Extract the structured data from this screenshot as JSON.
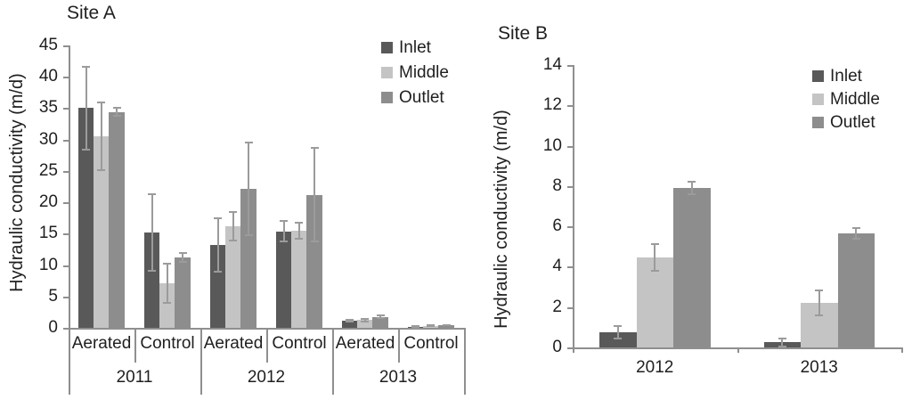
{
  "page": {
    "background": "#ffffff"
  },
  "style": {
    "axis_color": "#8f8f8f",
    "error_bar_color": "#9b9b9b",
    "text_color": "#1f1f1f",
    "series_colors": {
      "inlet": "#595959",
      "middle": "#c4c4c4",
      "outlet": "#8d8d8d"
    }
  },
  "chart_data": [
    {
      "id": "site-a",
      "type": "bar",
      "title": "Site A",
      "xlabel": "",
      "ylabel": "Hydraulic conductivity (m/d)",
      "ylim": [
        0,
        45
      ],
      "ytick_step": 5,
      "grid": false,
      "error_bars": true,
      "legend_position": "top-right-inside",
      "legend": [
        "Inlet",
        "Middle",
        "Outlet"
      ],
      "axis_groups": [
        {
          "label": "2011",
          "subs": [
            "Aerated",
            "Control"
          ]
        },
        {
          "label": "2012",
          "subs": [
            "Aerated",
            "Control"
          ]
        },
        {
          "label": "2013",
          "subs": [
            "Aerated",
            "Control"
          ]
        }
      ],
      "series": [
        {
          "name": "Inlet",
          "color": "#595959",
          "values": [
            35.0,
            15.2,
            13.2,
            15.4,
            1.1,
            0.15
          ],
          "errors": [
            6.8,
            6.3,
            4.4,
            1.8,
            0.3,
            0.05
          ]
        },
        {
          "name": "Middle",
          "color": "#c4c4c4",
          "values": [
            30.5,
            7.1,
            16.2,
            15.5,
            1.25,
            0.35
          ],
          "errors": [
            5.5,
            3.3,
            2.4,
            1.4,
            0.35,
            0.1
          ]
        },
        {
          "name": "Outlet",
          "color": "#8d8d8d",
          "values": [
            34.4,
            11.2,
            22.1,
            21.2,
            1.75,
            0.4
          ],
          "errors": [
            0.8,
            0.9,
            7.5,
            7.6,
            0.4,
            0.1
          ]
        }
      ]
    },
    {
      "id": "site-b",
      "type": "bar",
      "title": "Site B",
      "xlabel": "",
      "ylabel": "Hydraulic conductivity (m/d)",
      "ylim": [
        0,
        14
      ],
      "ytick_step": 2,
      "grid": false,
      "error_bars": true,
      "legend_position": "top-right-inside",
      "legend": [
        "Inlet",
        "Middle",
        "Outlet"
      ],
      "categories": [
        "2012",
        "2013"
      ],
      "series": [
        {
          "name": "Inlet",
          "color": "#595959",
          "values": [
            0.75,
            0.25
          ],
          "errors": [
            0.35,
            0.25
          ]
        },
        {
          "name": "Middle",
          "color": "#c4c4c4",
          "values": [
            4.45,
            2.2
          ],
          "errors": [
            0.7,
            0.65
          ]
        },
        {
          "name": "Outlet",
          "color": "#8d8d8d",
          "values": [
            7.9,
            5.65
          ],
          "errors": [
            0.35,
            0.3
          ]
        }
      ]
    }
  ]
}
